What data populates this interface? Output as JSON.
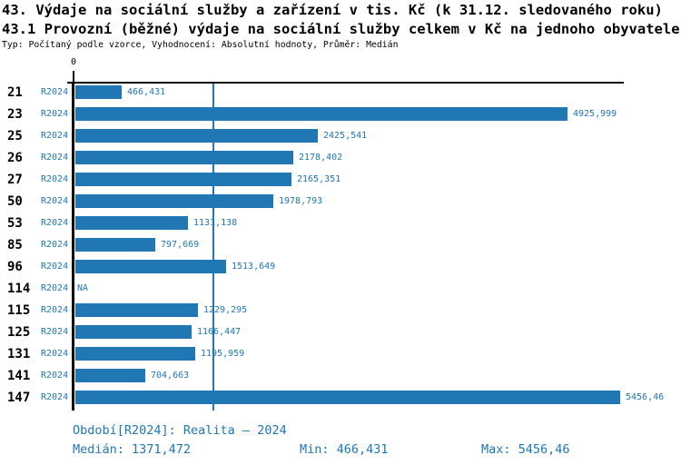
{
  "header": {
    "title_line1": "43. Výdaje na sociální služby a zařízení v tis. Kč (k 31.12. sledovaného roku)",
    "title_line2": "43.1 Provozní (běžné) výdaje na sociální služby celkem v Kč na jednoho obyvatele",
    "subtitle": "Typ: Počítaný podle vzorce, Vyhodnocení: Absolutní hodnoty, Průměr: Medián"
  },
  "colors": {
    "accent_blue": "#2077b4",
    "axis_black": "#000000",
    "background": "#ffffff"
  },
  "chart_data": {
    "type": "bar",
    "orientation": "horizontal",
    "title": "43. Výdaje na sociální služby a zařízení v tis. Kč (k 31.12. sledovaného roku)",
    "subtitle": "43.1 Provozní (běžné) výdaje na sociální služby celkem v Kč na jednoho obyvatele",
    "origin_tick_label": "0",
    "xlim": [
      0,
      5456.46
    ],
    "grid": false,
    "legend_position": "none",
    "median_value": 1371.472,
    "categories": [
      "21",
      "23",
      "25",
      "26",
      "27",
      "50",
      "53",
      "85",
      "96",
      "114",
      "115",
      "125",
      "131",
      "141",
      "147"
    ],
    "series": [
      {
        "name": "R2024",
        "values": [
          466.431,
          4925.999,
          2425.541,
          2178.402,
          2165.351,
          1978.793,
          1131.138,
          797.669,
          1513.649,
          null,
          1229.295,
          1166.447,
          1195.959,
          704.663,
          5456.46
        ],
        "value_labels": [
          "466,431",
          "4925,999",
          "2425,541",
          "2178,402",
          "2165,351",
          "1978,793",
          "1131,138",
          "797,669",
          "1513,649",
          "NA",
          "1229,295",
          "1166,447",
          "1195,959",
          "704,663",
          "5456,46"
        ]
      }
    ]
  },
  "footer": {
    "period": "Období[R2024]: Realita – 2024",
    "median": "Medián: 1371,472",
    "min": "Min: 466,431",
    "max": "Max: 5456,46"
  }
}
